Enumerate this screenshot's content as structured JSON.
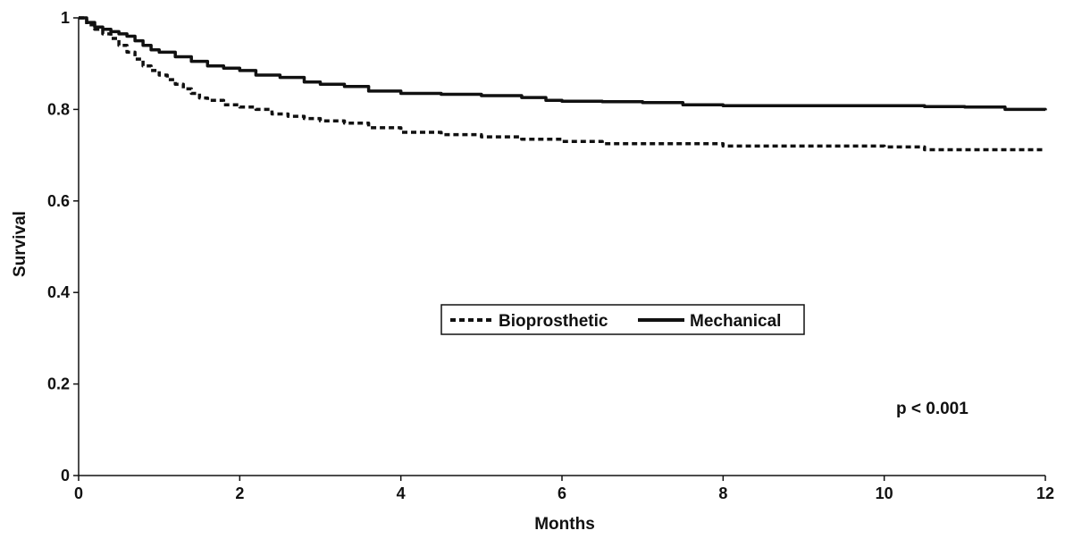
{
  "chart_data": {
    "type": "line",
    "title": "",
    "xlabel": "Months",
    "ylabel": "Survival",
    "xlim": [
      0,
      12
    ],
    "ylim": [
      0,
      1
    ],
    "x_ticks": [
      0,
      2,
      4,
      6,
      8,
      10,
      12
    ],
    "y_ticks": [
      0,
      0.2,
      0.4,
      0.6,
      0.8,
      1
    ],
    "y_tick_labels": [
      "0",
      "0.2",
      "0.4",
      "0.6",
      "0.8",
      "1"
    ],
    "x_tick_labels": [
      "0",
      "2",
      "4",
      "6",
      "8",
      "10",
      "12"
    ],
    "grid": false,
    "legend_position": "center-right",
    "annotation": "p < 0.001",
    "series": [
      {
        "name": "Bioprosthetic",
        "style": "dotted",
        "color": "#111111",
        "x": [
          0,
          0.1,
          0.2,
          0.3,
          0.4,
          0.5,
          0.6,
          0.7,
          0.8,
          0.9,
          1.0,
          1.1,
          1.2,
          1.3,
          1.4,
          1.5,
          1.6,
          1.8,
          2.0,
          2.2,
          2.4,
          2.6,
          2.8,
          3.0,
          3.3,
          3.6,
          4.0,
          4.5,
          5.0,
          5.5,
          6.0,
          6.5,
          7.0,
          8.0,
          9.0,
          10.0,
          10.5,
          11.0,
          12.0
        ],
        "y": [
          1.0,
          0.985,
          0.975,
          0.965,
          0.955,
          0.94,
          0.925,
          0.91,
          0.895,
          0.885,
          0.875,
          0.865,
          0.855,
          0.845,
          0.835,
          0.825,
          0.82,
          0.81,
          0.805,
          0.8,
          0.79,
          0.785,
          0.78,
          0.775,
          0.77,
          0.76,
          0.75,
          0.745,
          0.74,
          0.735,
          0.73,
          0.725,
          0.725,
          0.72,
          0.72,
          0.718,
          0.712,
          0.712,
          0.712
        ]
      },
      {
        "name": "Mechanical",
        "style": "solid",
        "color": "#111111",
        "x": [
          0,
          0.1,
          0.2,
          0.3,
          0.4,
          0.5,
          0.6,
          0.7,
          0.8,
          0.9,
          1.0,
          1.2,
          1.4,
          1.6,
          1.8,
          2.0,
          2.2,
          2.5,
          2.8,
          3.0,
          3.3,
          3.6,
          4.0,
          4.5,
          5.0,
          5.5,
          5.8,
          6.0,
          6.5,
          7.0,
          7.5,
          8.0,
          9.0,
          10.0,
          10.5,
          11.0,
          11.5,
          12.0
        ],
        "y": [
          1.0,
          0.99,
          0.98,
          0.975,
          0.97,
          0.965,
          0.96,
          0.95,
          0.94,
          0.93,
          0.925,
          0.915,
          0.905,
          0.895,
          0.89,
          0.885,
          0.875,
          0.87,
          0.86,
          0.855,
          0.85,
          0.84,
          0.835,
          0.833,
          0.83,
          0.826,
          0.82,
          0.818,
          0.817,
          0.815,
          0.81,
          0.808,
          0.808,
          0.808,
          0.806,
          0.805,
          0.8,
          0.798
        ]
      }
    ]
  }
}
